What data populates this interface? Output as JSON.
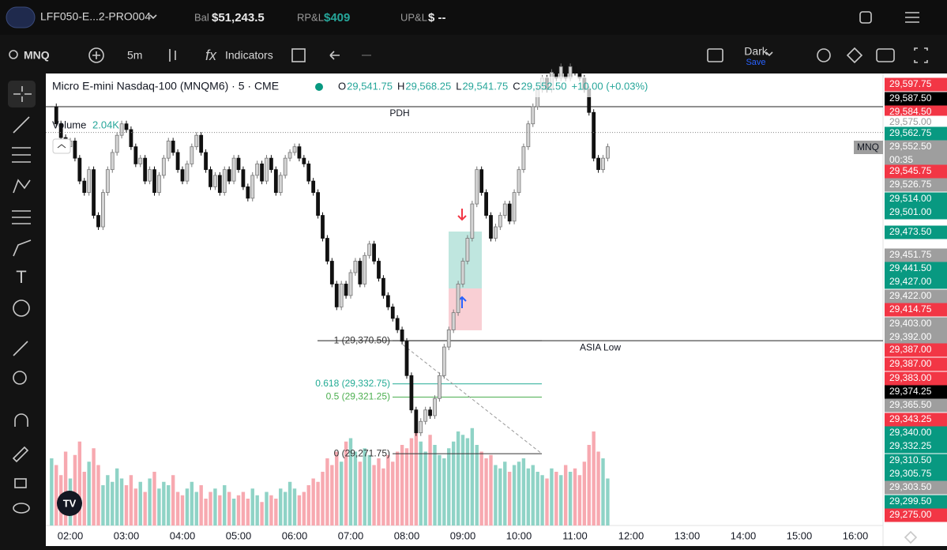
{
  "header": {
    "account": "LFF050-E...2-PRO004",
    "balance_label": "Bal",
    "balance": "$51,243.5",
    "rpl_label": "RP&L",
    "rpl": "$409",
    "upl_label": "UP&L",
    "upl": "$ --"
  },
  "toolbar": {
    "symbol": "MNQ",
    "interval": "5m",
    "indicators": "Indicators",
    "theme": "Dark",
    "save": "Save"
  },
  "chart": {
    "title": "Micro E-mini Nasdaq-100 (MNQM6) · 5 · CME",
    "ohlc": [
      {
        "key": "O",
        "value": "29,541.75"
      },
      {
        "key": "H",
        "value": "29,568.25"
      },
      {
        "key": "L",
        "value": "29,541.75"
      },
      {
        "key": "C",
        "value": "29,552.50"
      }
    ],
    "change": "+10.00 (+0.03%)",
    "volume_label": "Volume",
    "volume_value": "2.04K",
    "symbol_tag": "MNQ",
    "countdown": "00:35",
    "ylim": [
      29209,
      29604
    ],
    "volume_lim": [
      0,
      4000
    ],
    "lines": [
      {
        "label": "PDH",
        "value": 29575
      },
      {
        "label": "ASIA Low",
        "value": 29370.5
      }
    ],
    "fib": [
      {
        "label": "1 (29,370.50)",
        "value": 29370.5,
        "color": "#333333"
      },
      {
        "label": "0.618 (29,332.75)",
        "value": 29332.75,
        "color": "#22ab94"
      },
      {
        "label": "0.5 (29,321.25)",
        "value": 29321.25,
        "color": "#4caf50"
      },
      {
        "label": "0 (29,271.75)",
        "value": 29271.75,
        "color": "#333333"
      }
    ],
    "time_labels": [
      "02:00",
      "03:00",
      "04:00",
      "05:00",
      "06:00",
      "07:00",
      "08:00",
      "09:00",
      "10:00",
      "11:00",
      "12:00",
      "13:00",
      "14:00",
      "15:00",
      "16:00"
    ],
    "closes": [
      29575,
      29560,
      29548,
      29540,
      29545,
      29530,
      29510,
      29500,
      29520,
      29480,
      29470,
      29500,
      29520,
      29535,
      29550,
      29560,
      29555,
      29540,
      29525,
      29530,
      29510,
      29520,
      29500,
      29515,
      29530,
      29545,
      29535,
      29520,
      29510,
      29525,
      29540,
      29550,
      29535,
      29520,
      29505,
      29515,
      29500,
      29520,
      29510,
      29530,
      29520,
      29505,
      29495,
      29515,
      29525,
      29510,
      29530,
      29520,
      29500,
      29515,
      29530,
      29535,
      29540,
      29530,
      29525,
      29510,
      29500,
      29480,
      29460,
      29440,
      29420,
      29400,
      29420,
      29410,
      29430,
      29440,
      29420,
      29445,
      29455,
      29440,
      29425,
      29410,
      29400,
      29390,
      29380,
      29370,
      29340,
      29310,
      29290,
      29300,
      29310,
      29305,
      29320,
      29340,
      29365,
      29380,
      29395,
      29420,
      29440,
      29460,
      29490,
      29520,
      29500,
      29480,
      29460,
      29470,
      29480,
      29490,
      29475,
      29500,
      29520,
      29540,
      29560,
      29575,
      29590,
      29600,
      29590,
      29605,
      29600,
      29610,
      29600,
      29610,
      29605,
      29600,
      29590,
      29570,
      29530,
      29520,
      29530,
      29540
    ],
    "volumes": [
      2000,
      1800,
      1500,
      2200,
      1400,
      2100,
      2500,
      1600,
      1900,
      2300,
      1800,
      1200,
      1500,
      1300,
      1700,
      1400,
      1200,
      1500,
      1100,
      1300,
      1000,
      1400,
      1600,
      1100,
      1300,
      1200,
      1500,
      1000,
      900,
      1100,
      1300,
      1000,
      1200,
      800,
      1000,
      1100,
      900,
      1200,
      1000,
      800,
      900,
      1000,
      800,
      1100,
      900,
      700,
      1000,
      900,
      800,
      1100,
      1000,
      1300,
      1100,
      900,
      1000,
      1200,
      1400,
      1300,
      1600,
      2000,
      1800,
      2200,
      1900,
      2500,
      2600,
      2200,
      1900,
      2300,
      2100,
      1800,
      2000,
      1700,
      2100,
      1900,
      2200,
      2400,
      2300,
      2600,
      2900,
      2500,
      2200,
      2700,
      2400,
      2100,
      2000,
      2300,
      2500,
      2800,
      2700,
      2600,
      2900,
      2400,
      2200,
      2000,
      2100,
      1800,
      1700,
      1900,
      1600,
      1800,
      1900,
      2000,
      1700,
      1800,
      1600,
      1500,
      1400,
      1700,
      1600,
      1500,
      1800,
      1600,
      1700,
      1500,
      1900,
      2400,
      2800,
      2200,
      2000,
      1400
    ],
    "price_labels": [
      {
        "value": 29597.75,
        "label": "29,597.75",
        "color": "#f23645"
      },
      {
        "value": 29587.5,
        "label": "29,587.50",
        "color": "#000000"
      },
      {
        "value": 29584.5,
        "label": "29,584.50",
        "color": "#f23645"
      },
      {
        "value": 29575,
        "label": "29,575.00",
        "color": "#ffffff"
      },
      {
        "value": 29562.75,
        "label": "29,562.75",
        "color": "#089981"
      },
      {
        "value": 29552.5,
        "label": "29,552.50",
        "color": "#9e9e9e"
      },
      {
        "value": 29545.75,
        "label": "29,545.75",
        "color": "#f23645"
      },
      {
        "value": 29526.75,
        "label": "29,526.75",
        "color": "#9e9e9e"
      },
      {
        "value": 29514,
        "label": "29,514.00",
        "color": "#089981"
      },
      {
        "value": 29501,
        "label": "29,501.00",
        "color": "#089981"
      },
      {
        "value": 29473.5,
        "label": "29,473.50",
        "color": "#089981"
      },
      {
        "value": 29451.75,
        "label": "29,451.75",
        "color": "#9e9e9e"
      },
      {
        "value": 29441.5,
        "label": "29,441.50",
        "color": "#089981"
      },
      {
        "value": 29427,
        "label": "29,427.00",
        "color": "#089981"
      },
      {
        "value": 29422,
        "label": "29,422.00",
        "color": "#9e9e9e"
      },
      {
        "value": 29414.75,
        "label": "29,414.75",
        "color": "#f23645"
      },
      {
        "value": 29403,
        "label": "29,403.00",
        "color": "#9e9e9e"
      },
      {
        "value": 29392,
        "label": "29,392.00",
        "color": "#9e9e9e"
      },
      {
        "value": 29387,
        "label": "29,387.00",
        "color": "#f23645"
      },
      {
        "value": 29387,
        "label": "29,387.00",
        "color": "#f23645"
      },
      {
        "value": 29383,
        "label": "29,383.00",
        "color": "#f23645"
      },
      {
        "value": 29374.25,
        "label": "29,374.25",
        "color": "#000000"
      },
      {
        "value": 29365.5,
        "label": "29,365.50",
        "color": "#9e9e9e"
      },
      {
        "value": 29343.25,
        "label": "29,343.25",
        "color": "#f23645"
      },
      {
        "value": 29340,
        "label": "29,340.00",
        "color": "#089981"
      },
      {
        "value": 29332.25,
        "label": "29,332.25",
        "color": "#089981"
      },
      {
        "value": 29310.5,
        "label": "29,310.50",
        "color": "#089981"
      },
      {
        "value": 29305.75,
        "label": "29,305.75",
        "color": "#089981"
      },
      {
        "value": 29303.5,
        "label": "29,303.50",
        "color": "#9e9e9e"
      },
      {
        "value": 29299.5,
        "label": "29,299.50",
        "color": "#089981"
      },
      {
        "value": 29275,
        "label": "29,275.00",
        "color": "#f23645"
      }
    ]
  }
}
